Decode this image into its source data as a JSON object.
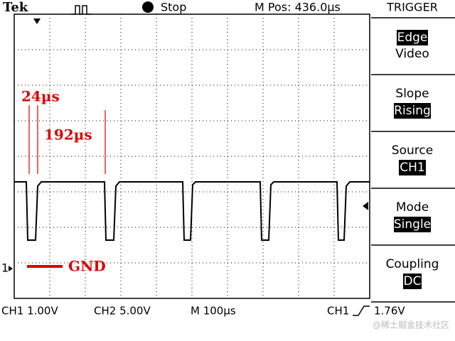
{
  "header": {
    "brand": "Tek",
    "status": "Stop",
    "position": "M Pos: 436.0µs"
  },
  "menu": {
    "title": "TRIGGER",
    "items": [
      {
        "options": [
          "Edge",
          "Video"
        ]
      },
      {
        "label": "Slope",
        "value": "Rising"
      },
      {
        "label": "Source",
        "value": "CH1"
      },
      {
        "label": "Mode",
        "value": "Single"
      },
      {
        "label": "Coupling",
        "value": "DC"
      }
    ]
  },
  "channel_marker": "1",
  "annotations": [
    "24µs",
    "192µs",
    "GND"
  ],
  "footer": {
    "ch1_scale": "CH1  1.00V",
    "ch2_scale": "CH2  5.00V",
    "time_scale": "M 100µs",
    "trigger_source": "CH1",
    "trigger_level": "1.76V"
  },
  "watermark": "@稀土掘金技术社区"
}
